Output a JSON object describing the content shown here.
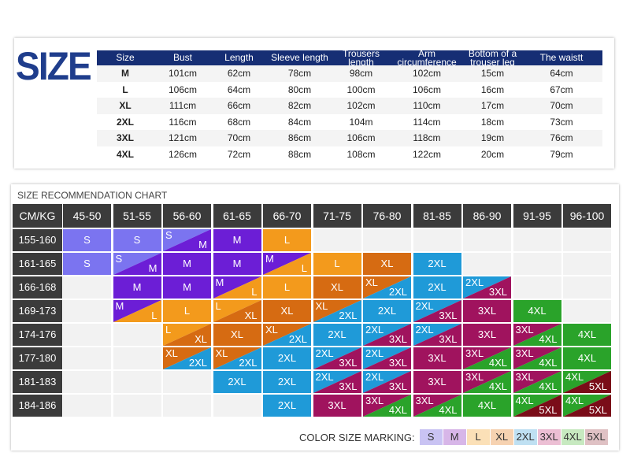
{
  "logo_text": "SIZE",
  "size_table": {
    "headers": [
      "Size",
      "Bust",
      "Length",
      "Sleeve length",
      "Trousers length",
      "Arm circumference",
      "Bottom of a trouser leg",
      "The waistt"
    ],
    "rows": [
      [
        "M",
        "101cm",
        "62cm",
        "78cm",
        "98cm",
        "102cm",
        "15cm",
        "64cm"
      ],
      [
        "L",
        "106cm",
        "64cm",
        "80cm",
        "100cm",
        "106cm",
        "16cm",
        "67cm"
      ],
      [
        "XL",
        "111cm",
        "66cm",
        "82cm",
        "102cm",
        "110cm",
        "17cm",
        "70cm"
      ],
      [
        "2XL",
        "116cm",
        "68cm",
        "84cm",
        "104m",
        "114cm",
        "18cm",
        "73cm"
      ],
      [
        "3XL",
        "121cm",
        "70cm",
        "86cm",
        "106cm",
        "118cm",
        "19cm",
        "76cm"
      ],
      [
        "4XL",
        "126cm",
        "72cm",
        "88cm",
        "108cm",
        "122cm",
        "20cm",
        "79cm"
      ]
    ]
  },
  "recommendation": {
    "title": "SIZE RECOMMENDATION CHART",
    "corner": "CM/KG",
    "weights": [
      "45-50",
      "51-55",
      "56-60",
      "61-65",
      "66-70",
      "71-75",
      "76-80",
      "81-85",
      "86-90",
      "91-95",
      "96-100"
    ],
    "heights": [
      "155-160",
      "161-165",
      "166-168",
      "169-173",
      "174-176",
      "177-180",
      "181-183",
      "184-186"
    ],
    "cells": [
      [
        [
          "S"
        ],
        [
          "S"
        ],
        [
          "S",
          "M"
        ],
        [
          "M"
        ],
        [
          "L"
        ],
        [],
        [],
        [],
        [],
        [],
        []
      ],
      [
        [
          "S"
        ],
        [
          "S",
          "M"
        ],
        [
          "M"
        ],
        [
          "M"
        ],
        [
          "M",
          "L"
        ],
        [
          "L"
        ],
        [
          "XL"
        ],
        [
          "2XL"
        ],
        [],
        [],
        []
      ],
      [
        [],
        [
          "M"
        ],
        [
          "M"
        ],
        [
          "M",
          "L"
        ],
        [
          "L"
        ],
        [
          "XL"
        ],
        [
          "XL",
          "2XL"
        ],
        [
          "2XL"
        ],
        [
          "2XL",
          "3XL"
        ],
        [],
        []
      ],
      [
        [],
        [
          "M",
          "L"
        ],
        [
          "L"
        ],
        [
          "L",
          "XL"
        ],
        [
          "XL"
        ],
        [
          "XL",
          "2XL"
        ],
        [
          "2XL"
        ],
        [
          "2XL",
          "3XL"
        ],
        [
          "3XL"
        ],
        [
          "4XL"
        ],
        []
      ],
      [
        [],
        [],
        [
          "L",
          "XL"
        ],
        [
          "XL"
        ],
        [
          "XL",
          "2XL"
        ],
        [
          "2XL"
        ],
        [
          "2XL",
          "3XL"
        ],
        [
          "2XL",
          "3XL"
        ],
        [
          "3XL"
        ],
        [
          "3XL",
          "4XL"
        ],
        [
          "4XL"
        ]
      ],
      [
        [],
        [],
        [
          "XL",
          "2XL"
        ],
        [
          "XL",
          "2XL"
        ],
        [
          "2XL"
        ],
        [
          "2XL",
          "3XL"
        ],
        [
          "2XL",
          "3XL"
        ],
        [
          "3XL"
        ],
        [
          "3XL",
          "4XL"
        ],
        [
          "3XL",
          "4XL"
        ],
        [
          "4XL"
        ]
      ],
      [
        [],
        [],
        [],
        [
          "2XL"
        ],
        [
          "2XL"
        ],
        [
          "2XL",
          "3XL"
        ],
        [
          "2XL",
          "3XL"
        ],
        [
          "3XL"
        ],
        [
          "3XL",
          "4XL"
        ],
        [
          "3XL",
          "4XL"
        ],
        [
          "4XL",
          "5XL"
        ]
      ],
      [
        [],
        [],
        [],
        [],
        [
          "2XL"
        ],
        [
          "3XL"
        ],
        [
          "3XL",
          "4XL"
        ],
        [
          "3XL",
          "4XL"
        ],
        [
          "4XL"
        ],
        [
          "4XL",
          "5XL"
        ],
        [
          "4XL",
          "5XL"
        ]
      ]
    ]
  },
  "legend": {
    "label": "COLOR SIZE MARKING:",
    "sizes": [
      "S",
      "M",
      "L",
      "XL",
      "2XL",
      "3XL",
      "4XL",
      "5XL"
    ]
  },
  "colors": {
    "S": "#7b74f0",
    "M": "#6c1ed6",
    "L": "#f39a1c",
    "XL": "#d66b12",
    "2XL": "#1f9ad8",
    "3XL": "#a0135e",
    "4XL": "#2aa32a",
    "5XL": "#7a0c18",
    "empty": "#f2f2f2",
    "header": "#3b3b3b",
    "table_header": "#162e74"
  },
  "legend_colors": {
    "S": "#c9c3f3",
    "M": "#d7b6e8",
    "L": "#fbe0b7",
    "XL": "#f6d2b1",
    "2XL": "#bfe0f2",
    "3XL": "#ecbfd4",
    "4XL": "#c7e9c0",
    "5XL": "#dfc1c4"
  }
}
